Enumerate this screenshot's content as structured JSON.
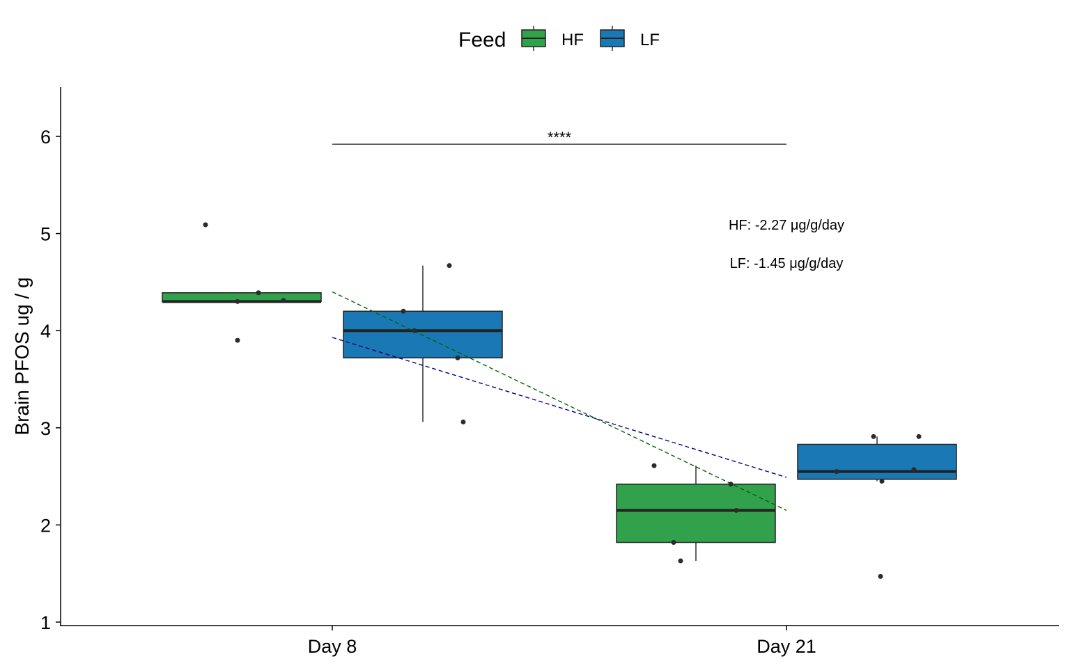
{
  "chart_data": {
    "type": "box",
    "xlabel": "",
    "ylabel": "Brain PFOS ug / g",
    "ylim": [
      1,
      6.5
    ],
    "yticks": [
      1,
      2,
      3,
      4,
      5,
      6
    ],
    "categories": [
      "Day 8",
      "Day 21"
    ],
    "legend": {
      "title": "Feed",
      "placement": "top",
      "entries": [
        {
          "name": "HF",
          "color": "#31a14b"
        },
        {
          "name": "LF",
          "color": "#1a78b5"
        }
      ]
    },
    "series": [
      {
        "name": "HF",
        "color": "#31a14b",
        "boxes": [
          {
            "category": "Day 8",
            "min": 4.3,
            "q1": 4.3,
            "median": 4.3,
            "q3": 4.39,
            "max": 4.39,
            "points": [
              5.09,
              4.3,
              4.39,
              3.9,
              4.31
            ]
          },
          {
            "category": "Day 21",
            "min": 1.63,
            "q1": 1.82,
            "median": 2.15,
            "q3": 2.42,
            "max": 2.61,
            "points": [
              2.61,
              1.82,
              1.63,
              2.42,
              2.15
            ]
          }
        ]
      },
      {
        "name": "LF",
        "color": "#1a78b5",
        "boxes": [
          {
            "category": "Day 8",
            "min": 3.06,
            "q1": 3.72,
            "median": 4.0,
            "q3": 4.2,
            "max": 4.67,
            "points": [
              4.2,
              4.67,
              4.0,
              3.72,
              3.06
            ]
          },
          {
            "category": "Day 21",
            "min": 2.45,
            "q1": 2.47,
            "median": 2.55,
            "q3": 2.83,
            "max": 2.91,
            "points": [
              2.55,
              2.91,
              2.45,
              2.91,
              2.57,
              1.47
            ]
          }
        ]
      }
    ],
    "trend_lines": [
      {
        "name": "HF",
        "color": "#006400",
        "style": "dashed",
        "from": [
          8,
          4.4
        ],
        "to": [
          21,
          2.15
        ]
      },
      {
        "name": "LF",
        "color": "#00008b",
        "style": "dashed",
        "from": [
          8,
          3.93
        ],
        "to": [
          21,
          2.49
        ]
      }
    ],
    "significance": {
      "label": "****",
      "from": "Day 8",
      "to": "Day 21",
      "y": 5.92
    },
    "annotations": [
      "HF: -2.27 μg/g/day",
      "LF: -1.45 μg/g/day"
    ]
  }
}
